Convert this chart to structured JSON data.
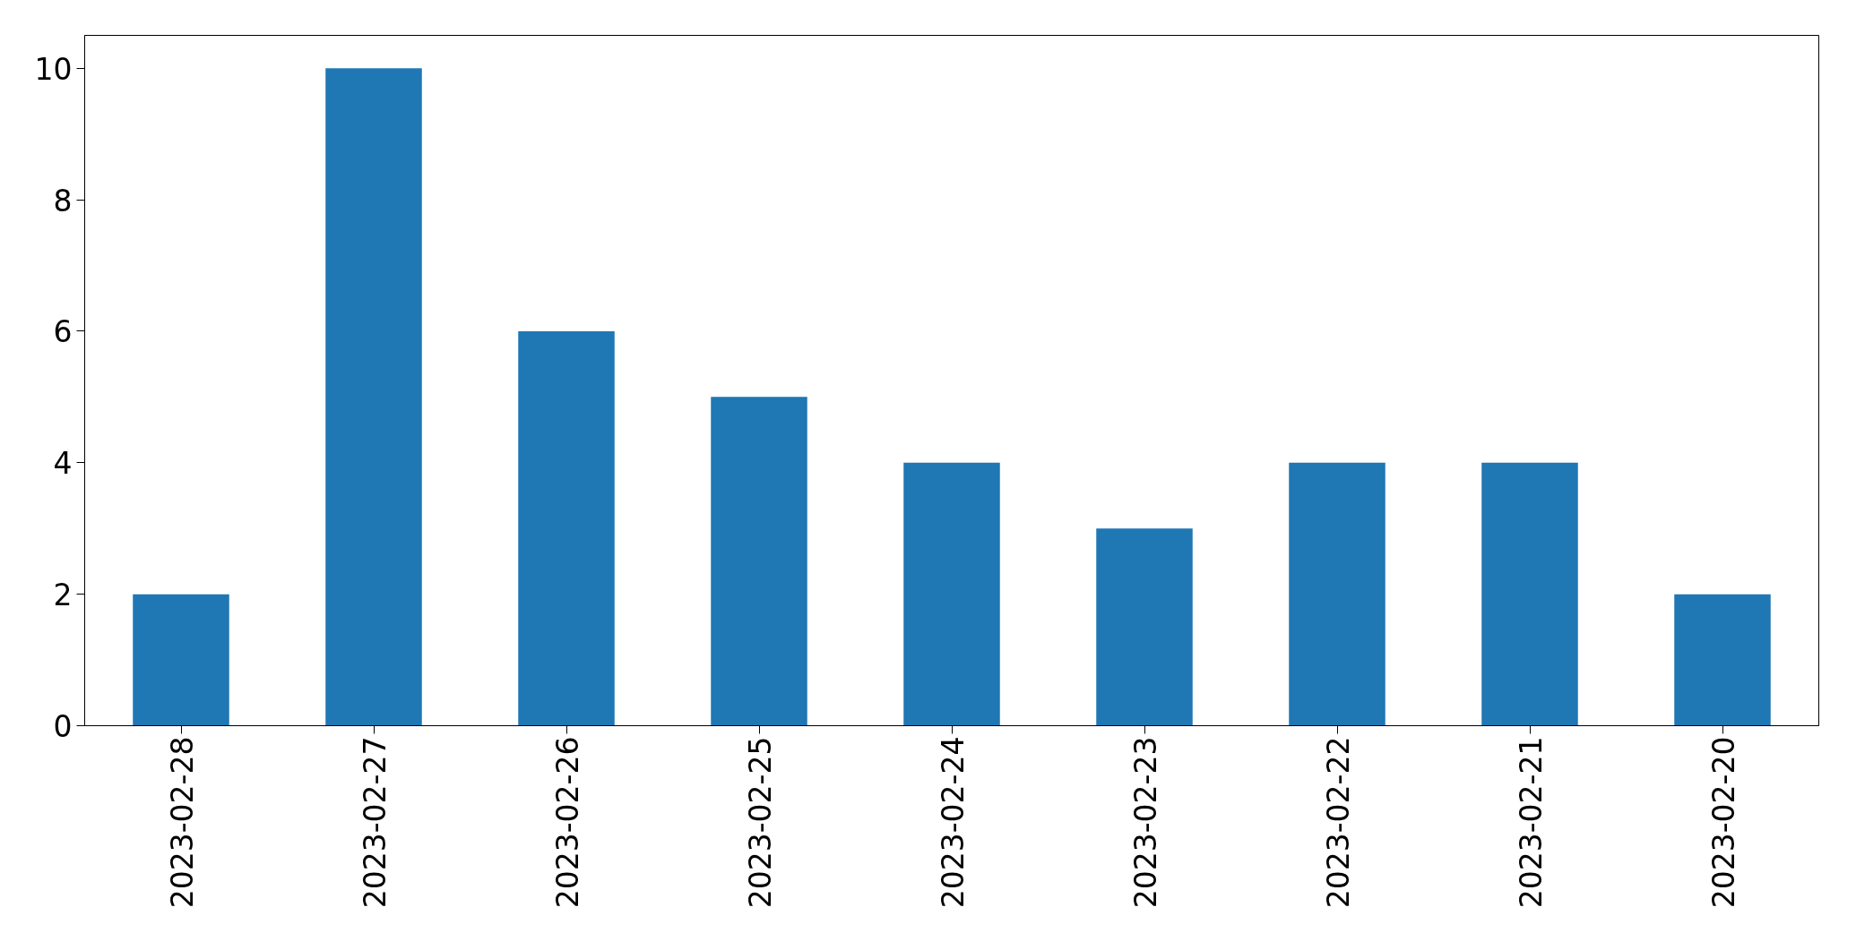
{
  "chart_data": {
    "type": "bar",
    "categories": [
      "2023-02-28",
      "2023-02-27",
      "2023-02-26",
      "2023-02-25",
      "2023-02-24",
      "2023-02-23",
      "2023-02-22",
      "2023-02-21",
      "2023-02-20"
    ],
    "values": [
      2,
      10,
      6,
      5,
      4,
      3,
      4,
      4,
      2
    ],
    "color": "#1f77b4",
    "ylim": [
      0,
      10.5
    ],
    "yticks": [
      0,
      2,
      4,
      6,
      8,
      10
    ],
    "grid": false
  }
}
